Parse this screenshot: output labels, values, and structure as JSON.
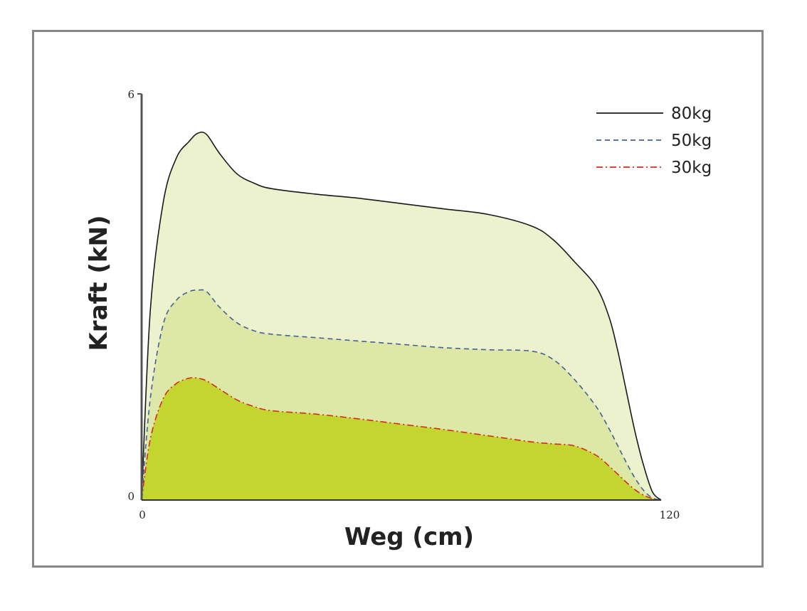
{
  "chart_data": {
    "type": "area",
    "title": "",
    "xlabel": "Weg (cm)",
    "ylabel": "Kraft (kN)",
    "xlim": [
      0,
      120
    ],
    "ylim": [
      0,
      6
    ],
    "x_ticks": [
      "0",
      "120"
    ],
    "y_ticks": [
      "0",
      "6"
    ],
    "grid": false,
    "legend_position": "top-right",
    "x": [
      0,
      2,
      5,
      8,
      11,
      13,
      15,
      18,
      22,
      26,
      30,
      40,
      50,
      60,
      70,
      80,
      90,
      95,
      100,
      105,
      108,
      110,
      112,
      114,
      116,
      118,
      120
    ],
    "series": [
      {
        "name": "80kg",
        "line_style": "solid",
        "line_color": "#1a1a1a",
        "fill_color": "#ecf2cd",
        "values": [
          0,
          2.8,
          4.4,
          5.05,
          5.3,
          5.42,
          5.4,
          5.12,
          4.82,
          4.68,
          4.6,
          4.52,
          4.46,
          4.38,
          4.3,
          4.22,
          4.05,
          3.85,
          3.52,
          3.15,
          2.7,
          2.2,
          1.6,
          1.0,
          0.5,
          0.12,
          0
        ]
      },
      {
        "name": "50kg",
        "line_style": "dashed",
        "line_color": "#4a5f94",
        "fill_color": "#dde7a6",
        "values": [
          0,
          1.5,
          2.6,
          2.95,
          3.08,
          3.1,
          3.08,
          2.85,
          2.62,
          2.5,
          2.45,
          2.4,
          2.35,
          2.3,
          2.25,
          2.22,
          2.2,
          2.08,
          1.78,
          1.38,
          1.05,
          0.8,
          0.55,
          0.32,
          0.14,
          0.03,
          0
        ]
      },
      {
        "name": "30kg",
        "line_style": "dash-dot",
        "line_color": "#d62a1e",
        "fill_color": "#c2d62f",
        "values": [
          0,
          0.9,
          1.5,
          1.72,
          1.8,
          1.8,
          1.76,
          1.64,
          1.48,
          1.38,
          1.32,
          1.27,
          1.2,
          1.12,
          1.04,
          0.95,
          0.86,
          0.83,
          0.8,
          0.66,
          0.5,
          0.38,
          0.26,
          0.15,
          0.07,
          0.02,
          0
        ]
      }
    ]
  }
}
